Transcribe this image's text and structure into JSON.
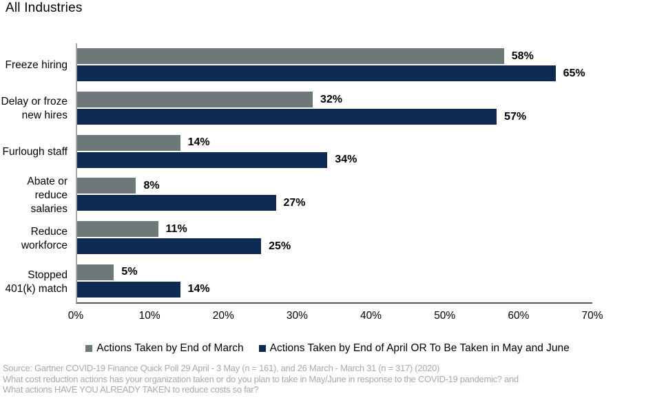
{
  "chart_data": {
    "type": "bar",
    "orientation": "horizontal",
    "title": "All Industries",
    "categories": [
      "Freeze hiring",
      "Delay or froze new hires",
      "Furlough staff",
      "Abate or reduce salaries",
      "Reduce workforce",
      "Stopped 401(k) match"
    ],
    "category_display_lines": [
      [
        "Freeze hiring"
      ],
      [
        "Delay or froze",
        "new hires"
      ],
      [
        "Furlough staff"
      ],
      [
        "Abate or",
        "reduce",
        "salaries"
      ],
      [
        "Reduce",
        "workforce"
      ],
      [
        "Stopped",
        "401(k) match"
      ]
    ],
    "series": [
      {
        "name": "Actions Taken by End of March",
        "color": "#6F7878",
        "values": [
          58,
          32,
          14,
          8,
          11,
          5
        ]
      },
      {
        "name": "Actions Taken by End of April OR To Be Taken in May and June",
        "color": "#0E2A52",
        "values": [
          65,
          57,
          34,
          27,
          25,
          14
        ]
      }
    ],
    "value_label_suffix": "%",
    "xlabel": "",
    "ylabel": "",
    "x_axis": {
      "min": 0,
      "max": 70,
      "tick_step": 10,
      "tick_labels": [
        "0%",
        "10%",
        "20%",
        "30%",
        "40%",
        "50%",
        "60%",
        "70%"
      ]
    },
    "grid": false,
    "legend_position": "bottom"
  },
  "footer": {
    "source_line": "Source: Gartner COVID-19 Finance Quick Poll 29 April - 3 May  (n = 161), and 26 March - March 31 (n = 317)  (2020)",
    "question_line1": "What cost reduction actions has your organization taken or do you plan to take in May/June  in response to the COVID-19 pandemic? and",
    "question_line2": "What actions HAVE YOU ALREADY TAKEN to reduce costs so far?"
  }
}
